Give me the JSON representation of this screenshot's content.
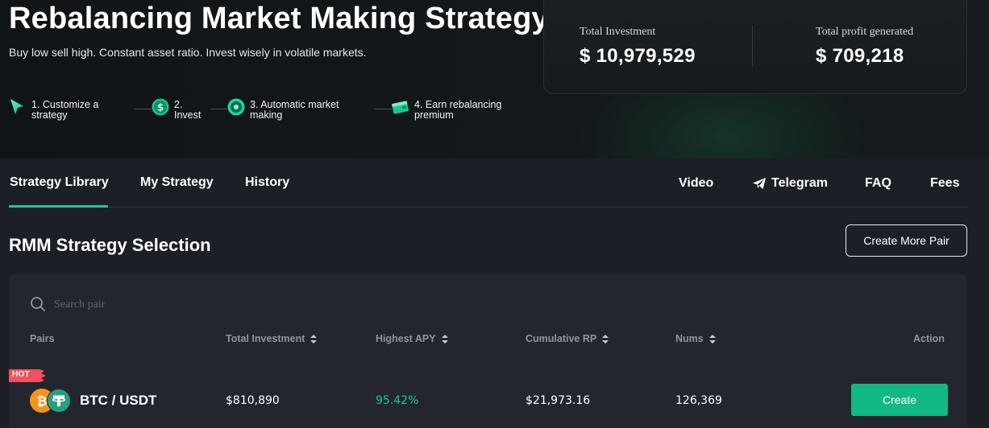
{
  "hero": {
    "title": "Rebalancing Market Making Strategy",
    "subtitle": "Buy low sell high. Constant asset ratio. Invest wisely in volatile markets.",
    "steps": [
      {
        "label": "1. Customize a\nstrategy",
        "icon": "cursor-icon"
      },
      {
        "label": "2.\nInvest",
        "icon": "dollar-coin-icon"
      },
      {
        "label": "3. Automatic market\nmaking",
        "icon": "robot-icon"
      },
      {
        "label": "4. Earn rebalancing\npremium",
        "icon": "wallet-icon"
      }
    ]
  },
  "stats": {
    "total_investment_label": "Total Investment",
    "total_investment_value": "$ 10,979,529",
    "total_profit_label": "Total profit generated",
    "total_profit_value": "$ 709,218"
  },
  "tabs": [
    {
      "label": "Strategy Library",
      "active": true
    },
    {
      "label": "My Strategy",
      "active": false
    },
    {
      "label": "History",
      "active": false
    }
  ],
  "nav": {
    "video": "Video",
    "telegram": "Telegram",
    "faq": "FAQ",
    "fees": "Fees"
  },
  "section": {
    "title": "RMM Strategy Selection",
    "create_more_label": "Create More Pair"
  },
  "search": {
    "placeholder": "Search pair"
  },
  "table": {
    "columns": {
      "pairs": "Pairs",
      "total_investment": "Total Investment",
      "highest_apy": "Highest APY",
      "cumulative_rp": "Cumulative RP",
      "nums": "Nums",
      "action": "Action"
    },
    "rows": [
      {
        "badge": "HOT",
        "pair": "BTC / USDT",
        "total_investment": "$810,890",
        "highest_apy": "95.42%",
        "cumulative_rp": "$21,973.16",
        "nums": "126,369",
        "action_label": "Create"
      }
    ]
  },
  "colors": {
    "accent_green": "#1ec98b",
    "button_green": "#12b886",
    "hot_badge": "#f0535f",
    "btc_orange": "#f7931a",
    "usdt_green": "#26a17b"
  }
}
